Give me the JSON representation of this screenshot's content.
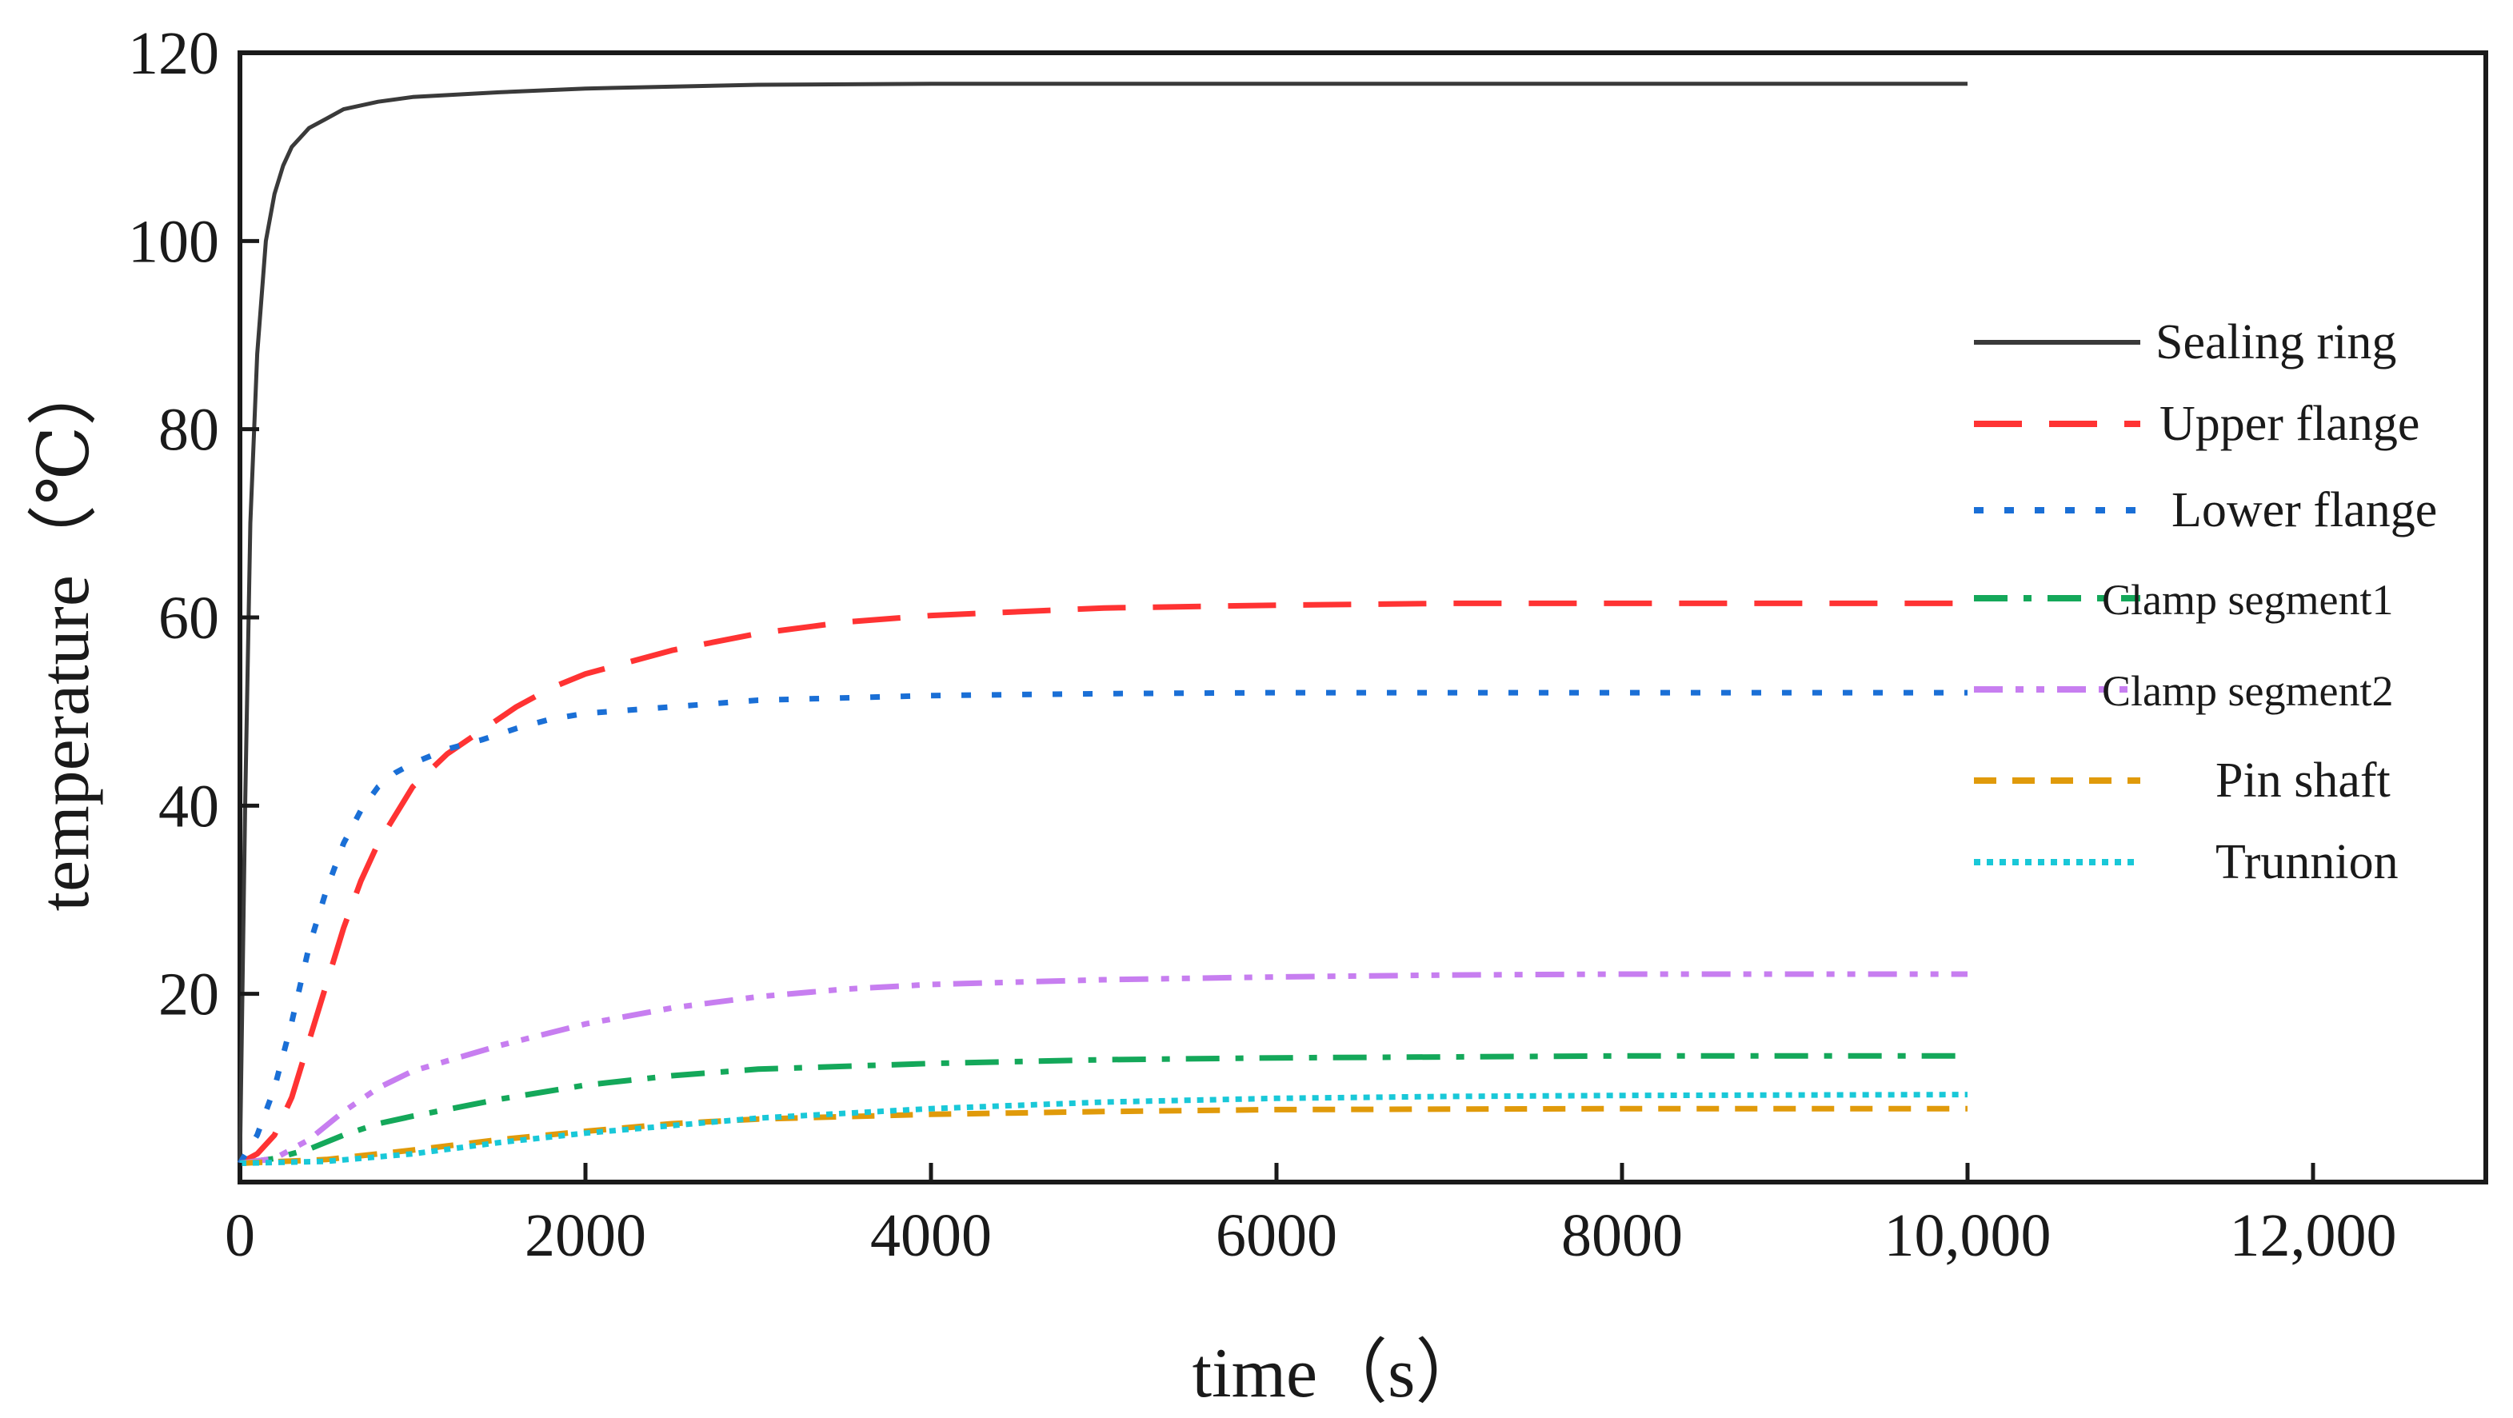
{
  "chart_data": {
    "type": "line",
    "title": "",
    "xlabel": "time（s）",
    "ylabel": "temperature（℃）",
    "xlim": [
      0,
      13000
    ],
    "ylim": [
      0,
      120
    ],
    "x_ticks": [
      0,
      2000,
      4000,
      6000,
      8000,
      10000,
      12000
    ],
    "x_tick_labels": [
      "0",
      "2000",
      "4000",
      "6000",
      "8000",
      "10,000",
      "12,000"
    ],
    "y_ticks": [
      20,
      40,
      60,
      80,
      100,
      120
    ],
    "y_tick_labels": [
      "20",
      "40",
      "60",
      "80",
      "100",
      "120"
    ],
    "grid": false,
    "legend_position": "right",
    "series": [
      {
        "name": "Sealing ring",
        "color": "#3a3a3a",
        "dash": "solid",
        "x": [
          0,
          30,
          60,
          100,
          150,
          200,
          250,
          300,
          400,
          500,
          600,
          800,
          1000,
          1500,
          2000,
          3000,
          4000,
          6000,
          8000,
          10000
        ],
        "y": [
          2,
          40,
          70,
          88,
          100,
          105,
          108,
          110,
          112,
          113,
          114,
          114.8,
          115.3,
          115.8,
          116.2,
          116.6,
          116.7,
          116.7,
          116.7,
          116.7
        ]
      },
      {
        "name": "Upper flange",
        "color": "#ff3333",
        "dash": "long-dash",
        "x": [
          0,
          100,
          200,
          300,
          400,
          500,
          600,
          700,
          800,
          900,
          1000,
          1200,
          1400,
          1600,
          1800,
          2000,
          2500,
          3000,
          3500,
          4000,
          5000,
          6000,
          7000,
          8000,
          9000,
          10000
        ],
        "y": [
          2,
          3,
          5,
          9,
          15,
          21,
          27,
          32,
          36,
          39,
          42,
          45.5,
          48,
          50.5,
          52.5,
          54,
          56.5,
          58.3,
          59.5,
          60.2,
          61,
          61.3,
          61.5,
          61.5,
          61.5,
          61.5
        ]
      },
      {
        "name": "Lower flange",
        "color": "#1a6fd6",
        "dash": "dot",
        "x": [
          0,
          100,
          200,
          300,
          400,
          500,
          600,
          700,
          800,
          900,
          1000,
          1200,
          1400,
          1600,
          1800,
          2000,
          2500,
          3000,
          4000,
          5000,
          6000,
          8000,
          10000
        ],
        "y": [
          2,
          5,
          10,
          17,
          25,
          31,
          36,
          39.5,
          42,
          43.5,
          44.5,
          46,
          47,
          48.2,
          49.2,
          49.8,
          50.5,
          51.2,
          51.7,
          51.9,
          52,
          52,
          52
        ]
      },
      {
        "name": "Clamp segment1",
        "color": "#14a85a",
        "dash": "dash-dot",
        "x": [
          0,
          200,
          400,
          600,
          800,
          1000,
          1500,
          2000,
          2500,
          3000,
          4000,
          5000,
          6000,
          8000,
          10000
        ],
        "y": [
          2,
          2.5,
          3.5,
          5,
          6.2,
          7,
          8.8,
          10.3,
          11.3,
          12,
          12.6,
          13,
          13.2,
          13.4,
          13.4
        ]
      },
      {
        "name": "Clamp segment2",
        "color": "#c77ef0",
        "dash": "dash-dot-dot",
        "x": [
          0,
          200,
          400,
          600,
          800,
          1000,
          1500,
          2000,
          2500,
          3000,
          3500,
          4000,
          5000,
          6000,
          7000,
          8000,
          10000
        ],
        "y": [
          2,
          2.5,
          4.5,
          7.5,
          10,
          11.8,
          14.5,
          16.8,
          18.5,
          19.7,
          20.5,
          21,
          21.5,
          21.8,
          22,
          22.1,
          22.1
        ]
      },
      {
        "name": "Pin shaft",
        "color": "#e09a0a",
        "dash": "dash",
        "x": [
          0,
          500,
          1000,
          1500,
          2000,
          2500,
          3000,
          4000,
          5000,
          6000,
          8000,
          10000
        ],
        "y": [
          2,
          2.4,
          3.4,
          4.5,
          5.4,
          6.2,
          6.7,
          7.2,
          7.5,
          7.7,
          7.8,
          7.8
        ]
      },
      {
        "name": "Trunnion",
        "color": "#19c8d8",
        "dash": "fine-dot",
        "x": [
          0,
          500,
          1000,
          1500,
          2000,
          2500,
          3000,
          4000,
          5000,
          6000,
          7000,
          8000,
          10000
        ],
        "y": [
          2,
          2.2,
          3,
          4.2,
          5.2,
          6,
          6.8,
          7.8,
          8.5,
          8.9,
          9.1,
          9.2,
          9.3
        ]
      }
    ]
  }
}
